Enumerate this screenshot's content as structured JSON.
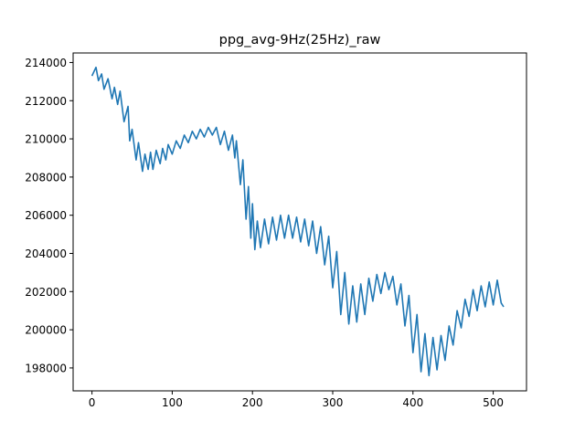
{
  "chart_data": {
    "type": "line",
    "title": "ppg_avg-9Hz(25Hz)_raw",
    "xlabel": "",
    "ylabel": "",
    "xlim": [
      -23.5,
      541.5
    ],
    "ylim": [
      196800,
      214500
    ],
    "grid": false,
    "legend": "none",
    "x_ticks": [
      0,
      100,
      200,
      300,
      400,
      500
    ],
    "y_ticks": [
      198000,
      200000,
      202000,
      204000,
      206000,
      208000,
      210000,
      212000,
      214000
    ],
    "line_color": "#1f77b4",
    "series": [
      {
        "x": [
          0,
          5,
          8,
          12,
          15,
          20,
          25,
          28,
          32,
          35,
          40,
          45,
          47,
          50,
          55,
          58,
          63,
          66,
          70,
          73,
          76,
          80,
          85,
          88,
          92,
          95,
          100,
          105,
          110,
          115,
          120,
          125,
          130,
          135,
          140,
          145,
          150,
          155,
          160,
          165,
          170,
          175,
          178,
          180,
          185,
          188,
          192,
          195,
          198,
          200,
          203,
          206,
          210,
          215,
          220,
          225,
          230,
          235,
          240,
          245,
          250,
          255,
          260,
          265,
          270,
          275,
          280,
          285,
          290,
          295,
          300,
          305,
          310,
          315,
          320,
          325,
          330,
          335,
          340,
          345,
          350,
          355,
          360,
          365,
          370,
          375,
          380,
          385,
          390,
          395,
          400,
          405,
          410,
          415,
          420,
          425,
          430,
          435,
          440,
          445,
          450,
          455,
          460,
          465,
          470,
          475,
          480,
          485,
          490,
          495,
          500,
          505,
          510,
          513
        ],
        "values": [
          213300,
          213750,
          213050,
          213400,
          212600,
          213150,
          212100,
          212700,
          211800,
          212500,
          210900,
          211700,
          209900,
          210500,
          208900,
          209800,
          208300,
          209200,
          208400,
          209300,
          208400,
          209400,
          208700,
          209500,
          208900,
          209700,
          209200,
          209900,
          209500,
          210200,
          209800,
          210400,
          210000,
          210500,
          210100,
          210600,
          210200,
          210600,
          209700,
          210400,
          209400,
          210200,
          209000,
          209900,
          207600,
          208900,
          205800,
          207500,
          204800,
          206600,
          204200,
          205700,
          204300,
          205800,
          204500,
          205900,
          204700,
          206000,
          204800,
          206000,
          204800,
          205900,
          204600,
          205800,
          204400,
          205700,
          204000,
          205400,
          203400,
          204900,
          202200,
          204100,
          200800,
          203000,
          200300,
          202300,
          200400,
          202400,
          200800,
          202700,
          201500,
          202900,
          201900,
          203000,
          202100,
          202800,
          201300,
          202400,
          200200,
          201800,
          198800,
          200800,
          197800,
          199800,
          197600,
          199600,
          197900,
          199700,
          198400,
          200200,
          199200,
          201000,
          200100,
          201600,
          200700,
          202100,
          201000,
          202300,
          201200,
          202500,
          201300,
          202600,
          201400,
          201200
        ]
      }
    ]
  }
}
